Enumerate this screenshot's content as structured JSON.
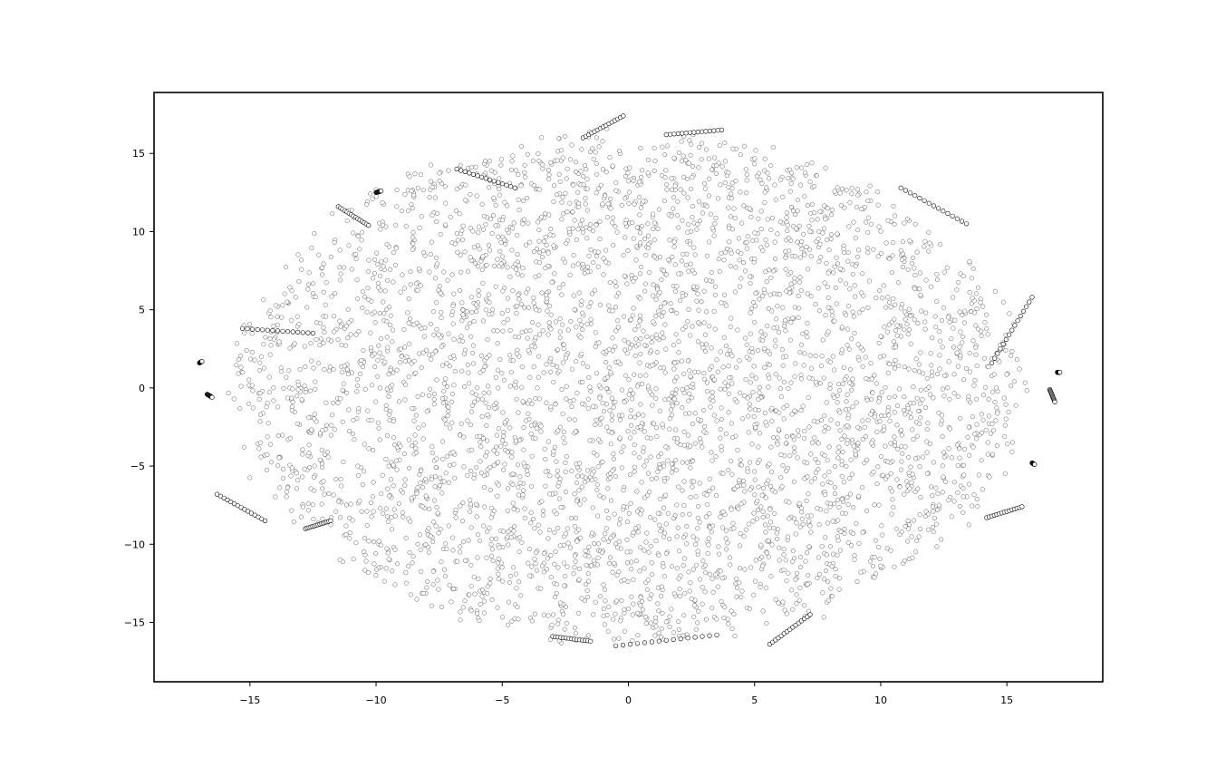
{
  "chart_data": {
    "type": "scatter",
    "title": "",
    "xlabel": "",
    "ylabel": "",
    "xlim": [
      -18.8,
      18.8
    ],
    "ylim": [
      -18.8,
      18.9
    ],
    "grid": false,
    "legend": "none",
    "marker": {
      "shape": "circle",
      "fill": "#ffffff",
      "edge": "#000000"
    },
    "xticks": [
      {
        "value": -15,
        "label": "−15"
      },
      {
        "value": -10,
        "label": "−10"
      },
      {
        "value": -5,
        "label": "−5"
      },
      {
        "value": 0,
        "label": "0"
      },
      {
        "value": 5,
        "label": "5"
      },
      {
        "value": 10,
        "label": "10"
      },
      {
        "value": 15,
        "label": "15"
      }
    ],
    "yticks": [
      {
        "value": -15,
        "label": "−15"
      },
      {
        "value": -10,
        "label": "−10"
      },
      {
        "value": -5,
        "label": "−5"
      },
      {
        "value": 0,
        "label": "0"
      },
      {
        "value": 5,
        "label": "5"
      },
      {
        "value": 10,
        "label": "10"
      },
      {
        "value": 15,
        "label": "15"
      }
    ],
    "point_cloud": {
      "description_units": "data",
      "main_body": {
        "cx": 0.0,
        "cy": 0.0,
        "rx": 16.0,
        "ry": 16.8
      },
      "strands": [
        {
          "x": [
            -17.0,
            -16.9
          ],
          "y": [
            1.6,
            1.7
          ]
        },
        {
          "x": [
            -16.7,
            -16.5
          ],
          "y": [
            -0.4,
            -0.6
          ]
        },
        {
          "x": [
            -16.3,
            -14.4
          ],
          "y": [
            -6.8,
            -8.5
          ]
        },
        {
          "x": [
            -15.3,
            -12.5
          ],
          "y": [
            3.8,
            3.5
          ]
        },
        {
          "x": [
            -11.5,
            -10.3
          ],
          "y": [
            11.6,
            10.4
          ]
        },
        {
          "x": [
            -10.0,
            -9.8
          ],
          "y": [
            12.5,
            12.6
          ]
        },
        {
          "x": [
            -6.8,
            -4.5
          ],
          "y": [
            14.0,
            12.8
          ]
        },
        {
          "x": [
            -1.8,
            -0.2
          ],
          "y": [
            16.0,
            17.4
          ]
        },
        {
          "x": [
            1.5,
            3.7
          ],
          "y": [
            16.2,
            16.5
          ]
        },
        {
          "x": [
            10.8,
            13.4
          ],
          "y": [
            12.8,
            10.5
          ]
        },
        {
          "x": [
            14.4,
            16.0
          ],
          "y": [
            1.6,
            5.8
          ]
        },
        {
          "x": [
            16.7,
            16.9
          ],
          "y": [
            -0.1,
            -0.9
          ]
        },
        {
          "x": [
            16.0,
            16.1
          ],
          "y": [
            -4.8,
            -4.9
          ]
        },
        {
          "x": [
            17.0,
            17.1
          ],
          "y": [
            1.0,
            1.0
          ]
        },
        {
          "x": [
            14.2,
            15.6
          ],
          "y": [
            -8.3,
            -7.6
          ]
        },
        {
          "x": [
            5.6,
            7.2
          ],
          "y": [
            -16.4,
            -14.5
          ]
        },
        {
          "x": [
            -0.5,
            3.5
          ],
          "y": [
            -16.5,
            -15.8
          ]
        },
        {
          "x": [
            -3.0,
            -1.5
          ],
          "y": [
            -15.9,
            -16.2
          ]
        },
        {
          "x": [
            -12.8,
            -11.8
          ],
          "y": [
            -9.0,
            -8.5
          ]
        }
      ]
    }
  }
}
